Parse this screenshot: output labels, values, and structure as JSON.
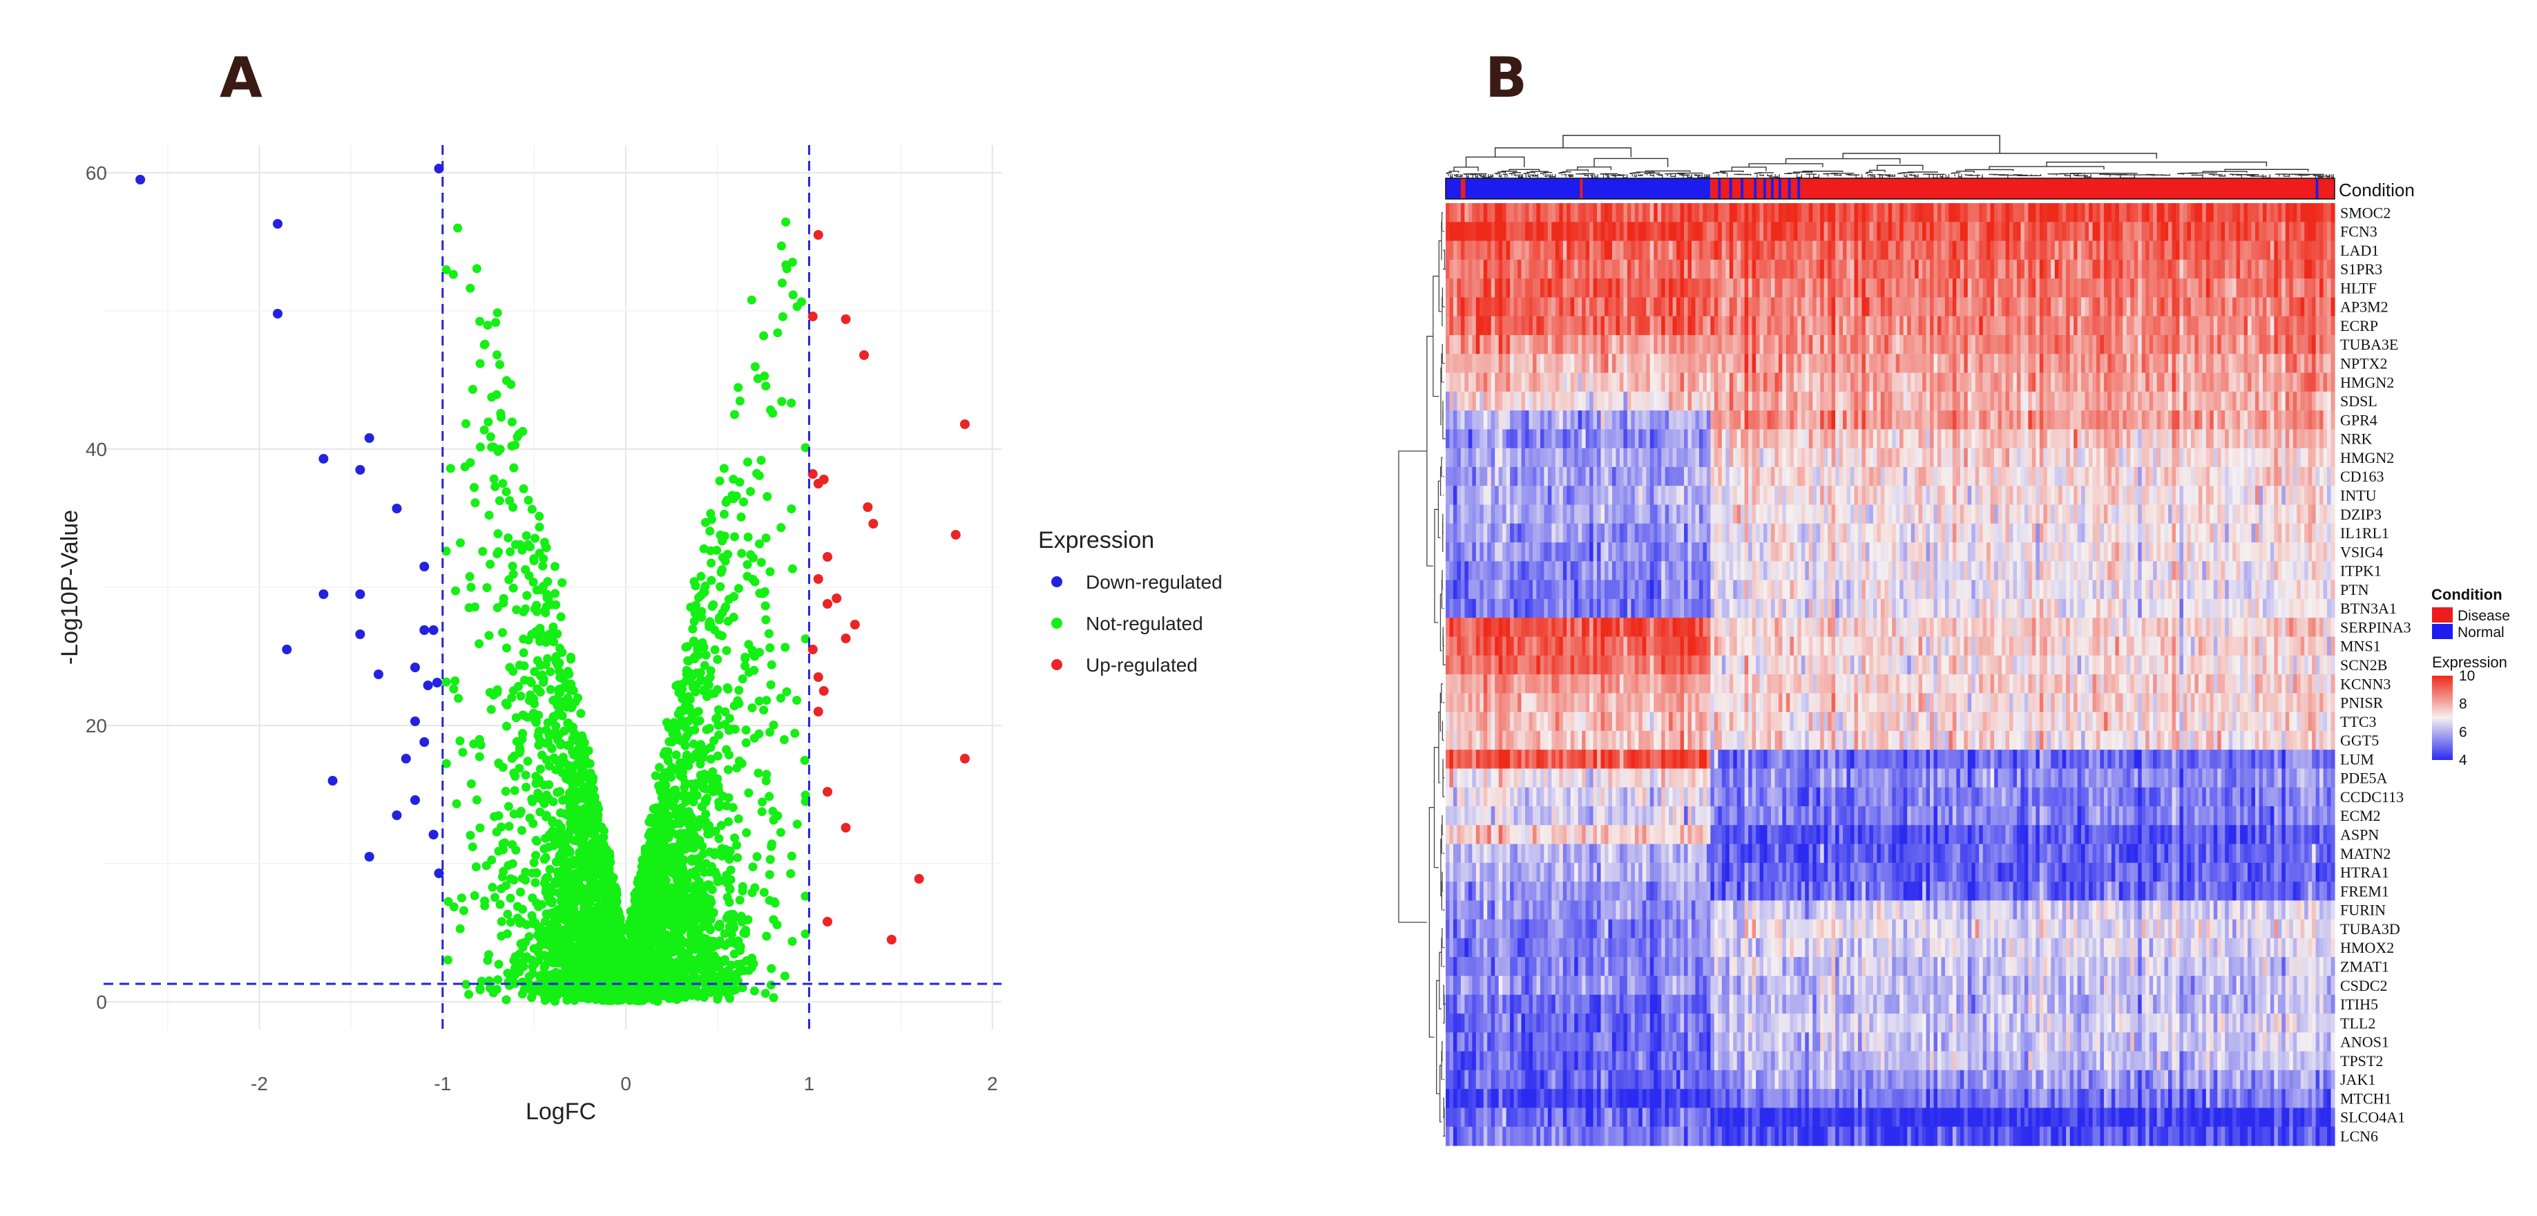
{
  "panels": {
    "a_label": "A",
    "b_label": "B"
  },
  "chart_data": [
    {
      "type": "scatter",
      "title": "",
      "xlabel": "LogFC",
      "ylabel": "-Log10P-Value",
      "xlim": [
        -2.85,
        2.05
      ],
      "ylim": [
        -2,
        62
      ],
      "x_ticks": [
        "-2",
        "-1",
        "0",
        "1",
        "2"
      ],
      "y_ticks": [
        "0",
        "20",
        "40",
        "60"
      ],
      "thresholds": {
        "logfc": [
          -1,
          1
        ],
        "neg_log10_p": 1.3
      },
      "legend_title": "Expression",
      "colors": {
        "down": "#2222e0",
        "not": "#14ef14",
        "up": "#ec2424",
        "threshold_line": "#2222dd"
      },
      "series": [
        {
          "name": "Down-regulated",
          "color_key": "down",
          "points": [
            [
              -2.65,
              59.5
            ],
            [
              -1.02,
              60.3
            ],
            [
              -1.9,
              56.3
            ],
            [
              -1.9,
              49.8
            ],
            [
              -1.4,
              40.8
            ],
            [
              -1.65,
              39.3
            ],
            [
              -1.45,
              38.5
            ],
            [
              -1.25,
              35.7
            ],
            [
              -1.1,
              31.5
            ],
            [
              -1.45,
              29.5
            ],
            [
              -1.65,
              29.5
            ],
            [
              -1.45,
              26.6
            ],
            [
              -1.1,
              26.9
            ],
            [
              -1.05,
              26.9
            ],
            [
              -1.85,
              25.5
            ],
            [
              -1.35,
              23.7
            ],
            [
              -1.03,
              23.1
            ],
            [
              -1.08,
              22.9
            ],
            [
              -1.15,
              24.2
            ],
            [
              -1.15,
              20.3
            ],
            [
              -1.1,
              18.8
            ],
            [
              -1.2,
              17.6
            ],
            [
              -1.6,
              16.0
            ],
            [
              -1.15,
              14.6
            ],
            [
              -1.25,
              13.5
            ],
            [
              -1.05,
              12.1
            ],
            [
              -1.4,
              10.5
            ],
            [
              -1.02,
              9.3
            ]
          ]
        },
        {
          "name": "Not-regulated",
          "color_key": "not",
          "points": []
        },
        {
          "name": "Up-regulated",
          "color_key": "up",
          "points": [
            [
              1.05,
              55.5
            ],
            [
              1.02,
              49.6
            ],
            [
              1.2,
              49.4
            ],
            [
              1.3,
              46.8
            ],
            [
              1.85,
              41.8
            ],
            [
              1.02,
              38.2
            ],
            [
              1.05,
              37.5
            ],
            [
              1.08,
              37.8
            ],
            [
              1.32,
              35.8
            ],
            [
              1.35,
              34.6
            ],
            [
              1.8,
              33.8
            ],
            [
              1.1,
              32.2
            ],
            [
              1.05,
              30.6
            ],
            [
              1.15,
              29.2
            ],
            [
              1.1,
              28.8
            ],
            [
              1.25,
              27.3
            ],
            [
              1.02,
              25.5
            ],
            [
              1.2,
              26.3
            ],
            [
              1.05,
              23.5
            ],
            [
              1.08,
              22.5
            ],
            [
              1.05,
              21.0
            ],
            [
              1.85,
              17.6
            ],
            [
              1.1,
              15.2
            ],
            [
              1.2,
              12.6
            ],
            [
              1.6,
              8.9
            ],
            [
              1.1,
              5.8
            ],
            [
              1.45,
              4.5
            ]
          ]
        }
      ]
    },
    {
      "type": "heatmap",
      "condition_label": "Condition",
      "legend": {
        "condition_title": "Condition",
        "conditions": [
          {
            "name": "Disease",
            "color": "#ee1c1c"
          },
          {
            "name": "Normal",
            "color": "#1c1cee"
          }
        ],
        "expression_title": "Expression",
        "scale_ticks": [
          "10",
          "8",
          "6",
          "4"
        ]
      },
      "scale": {
        "min": 4,
        "mid": 7,
        "max": 10,
        "low_color": "#2b2bf0",
        "mid_color": "#f5f0f0",
        "high_color": "#ee2a1a"
      },
      "columns": {
        "normal_count": 140,
        "disease_count": 330
      },
      "genes": [
        {
          "name": "SMOC2",
          "normal": 9.3,
          "disease": 9.6
        },
        {
          "name": "FCN3",
          "normal": 9.8,
          "disease": 9.3
        },
        {
          "name": "LAD1",
          "normal": 9.2,
          "disease": 9.1
        },
        {
          "name": "S1PR3",
          "normal": 9.0,
          "disease": 9.0
        },
        {
          "name": "HLTF",
          "normal": 9.3,
          "disease": 8.8
        },
        {
          "name": "AP3M2",
          "normal": 9.2,
          "disease": 8.7
        },
        {
          "name": "ECRP",
          "normal": 9.1,
          "disease": 8.6
        },
        {
          "name": "TUBA3E",
          "normal": 8.3,
          "disease": 8.5
        },
        {
          "name": "NPTX2",
          "normal": 7.9,
          "disease": 8.3
        },
        {
          "name": "HMGN2",
          "normal": 7.8,
          "disease": 8.2
        },
        {
          "name": "SDSL",
          "normal": 7.3,
          "disease": 8.0
        },
        {
          "name": "GPR4",
          "normal": 6.0,
          "disease": 8.3
        },
        {
          "name": "NRK",
          "normal": 5.6,
          "disease": 7.6
        },
        {
          "name": "HMGN2",
          "normal": 5.8,
          "disease": 7.4
        },
        {
          "name": "CD163",
          "normal": 5.7,
          "disease": 7.3
        },
        {
          "name": "INTU",
          "normal": 5.9,
          "disease": 7.2
        },
        {
          "name": "DZIP3",
          "normal": 5.8,
          "disease": 7.2
        },
        {
          "name": "IL1RL1",
          "normal": 5.6,
          "disease": 7.0
        },
        {
          "name": "VSIG4",
          "normal": 5.5,
          "disease": 7.0
        },
        {
          "name": "ITPK1",
          "normal": 5.4,
          "disease": 7.0
        },
        {
          "name": "PTN",
          "normal": 5.3,
          "disease": 6.9
        },
        {
          "name": "BTN3A1",
          "normal": 5.2,
          "disease": 6.9
        },
        {
          "name": "SERPINA3",
          "normal": 9.5,
          "disease": 7.4
        },
        {
          "name": "MNS1",
          "normal": 9.2,
          "disease": 7.3
        },
        {
          "name": "SCN2B",
          "normal": 9.0,
          "disease": 7.2
        },
        {
          "name": "KCNN3",
          "normal": 8.3,
          "disease": 7.5
        },
        {
          "name": "PNISR",
          "normal": 8.0,
          "disease": 7.4
        },
        {
          "name": "TTC3",
          "normal": 7.8,
          "disease": 7.3
        },
        {
          "name": "GGT5",
          "normal": 7.7,
          "disease": 7.2
        },
        {
          "name": "LUM",
          "normal": 9.4,
          "disease": 5.0
        },
        {
          "name": "PDE5A",
          "normal": 7.0,
          "disease": 5.5
        },
        {
          "name": "CCDC113",
          "normal": 6.8,
          "disease": 5.3
        },
        {
          "name": "ECM2",
          "normal": 6.5,
          "disease": 5.3
        },
        {
          "name": "ASPN",
          "normal": 7.6,
          "disease": 4.6
        },
        {
          "name": "MATN2",
          "normal": 6.2,
          "disease": 4.8
        },
        {
          "name": "HTRA1",
          "normal": 6.0,
          "disease": 4.8
        },
        {
          "name": "FREM1",
          "normal": 5.8,
          "disease": 4.9
        },
        {
          "name": "FURIN",
          "normal": 5.6,
          "disease": 6.5
        },
        {
          "name": "TUBA3D",
          "normal": 5.3,
          "disease": 6.8
        },
        {
          "name": "HMOX2",
          "normal": 5.3,
          "disease": 6.6
        },
        {
          "name": "ZMAT1",
          "normal": 5.2,
          "disease": 6.4
        },
        {
          "name": "CSDC2",
          "normal": 5.5,
          "disease": 6.3
        },
        {
          "name": "ITIH5",
          "normal": 5.0,
          "disease": 6.2
        },
        {
          "name": "TLL2",
          "normal": 5.0,
          "disease": 6.5
        },
        {
          "name": "ANOS1",
          "normal": 5.0,
          "disease": 6.3
        },
        {
          "name": "TPST2",
          "normal": 4.9,
          "disease": 6.1
        },
        {
          "name": "JAK1",
          "normal": 4.8,
          "disease": 5.7
        },
        {
          "name": "MTCH1",
          "normal": 4.2,
          "disease": 5.2
        },
        {
          "name": "SLCO4A1",
          "normal": 5.0,
          "disease": 4.1
        },
        {
          "name": "LCN6",
          "normal": 5.2,
          "disease": 4.5
        }
      ]
    }
  ]
}
